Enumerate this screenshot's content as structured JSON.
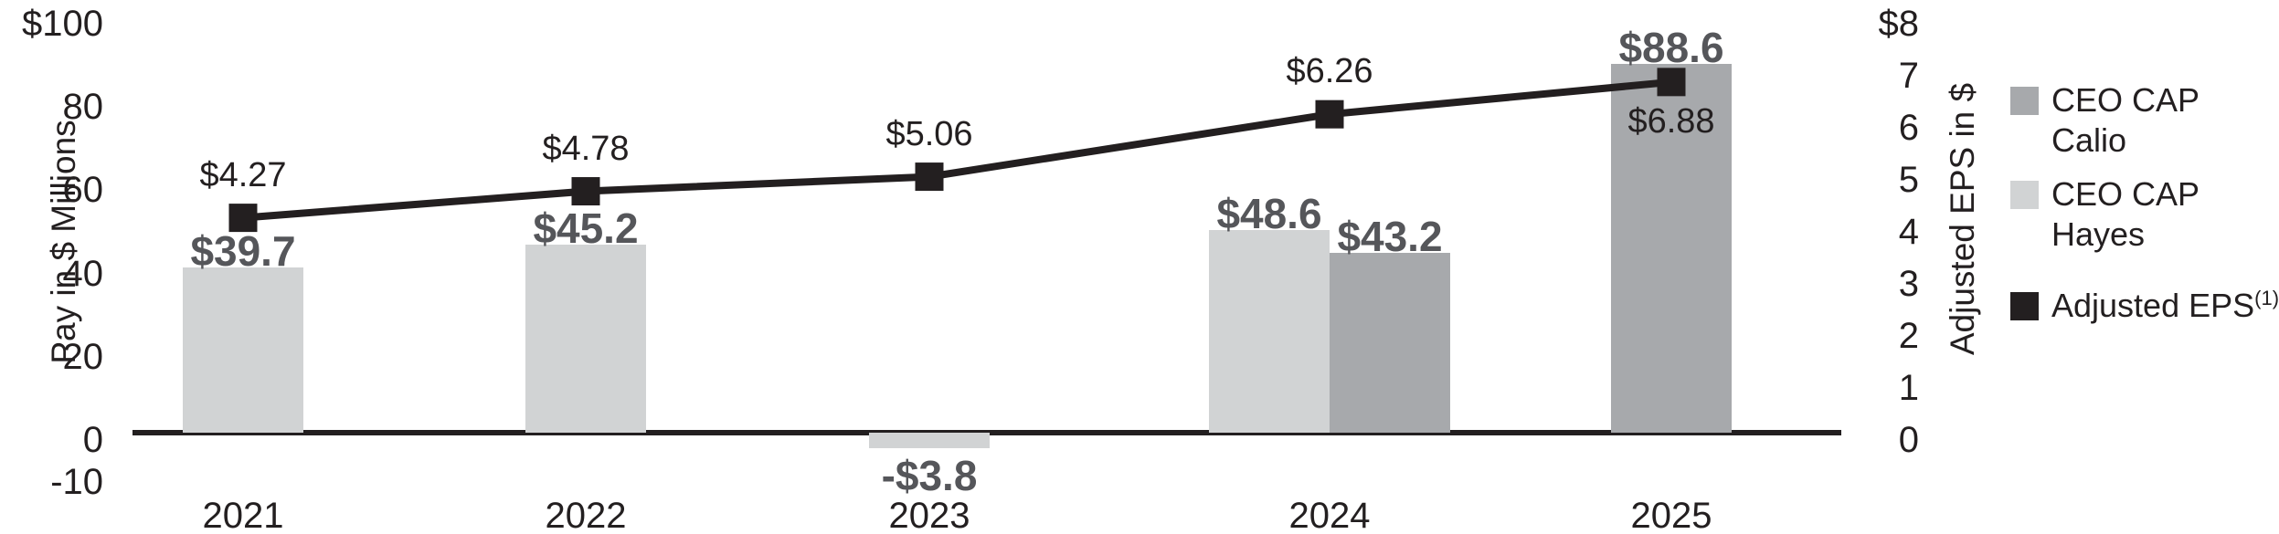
{
  "chart_data": {
    "type": "bar+line",
    "title": "",
    "left_axis": {
      "title": "Pay in $ Millions",
      "range": [
        -10,
        100
      ],
      "ticks": [
        {
          "label": "$100",
          "value": 100
        },
        {
          "label": "80",
          "value": 80
        },
        {
          "label": "60",
          "value": 60
        },
        {
          "label": "40",
          "value": 40
        },
        {
          "label": "20",
          "value": 20
        },
        {
          "label": "0",
          "value": 0
        },
        {
          "label": "-10",
          "value": -10
        }
      ]
    },
    "right_axis": {
      "title": "Adjusted EPS in $",
      "range": [
        0,
        8
      ],
      "ticks": [
        {
          "label": "$8",
          "value": 8
        },
        {
          "label": "7",
          "value": 7
        },
        {
          "label": "6",
          "value": 6
        },
        {
          "label": "5",
          "value": 5
        },
        {
          "label": "4",
          "value": 4
        },
        {
          "label": "3",
          "value": 3
        },
        {
          "label": "2",
          "value": 2
        },
        {
          "label": "1",
          "value": 1
        },
        {
          "label": "0",
          "value": 0
        }
      ]
    },
    "series_meta": {
      "hayes": {
        "name": "CEO CAP Hayes",
        "color": "#d1d3d4"
      },
      "calio": {
        "name": "CEO CAP Calio",
        "color": "#a7a9ac"
      },
      "eps": {
        "name": "Adjusted EPS",
        "color": "#231f20"
      }
    },
    "categories": [
      {
        "year": "2021",
        "bars": [
          {
            "series": "hayes",
            "value": 39.7,
            "label": "$39.7",
            "label_pos": "above"
          }
        ],
        "eps": {
          "value": 4.27,
          "label": "$4.27",
          "label_pos": "above"
        }
      },
      {
        "year": "2022",
        "bars": [
          {
            "series": "hayes",
            "value": 45.2,
            "label": "$45.2",
            "label_pos": "above"
          }
        ],
        "eps": {
          "value": 4.78,
          "label": "$4.78",
          "label_pos": "above"
        }
      },
      {
        "year": "2023",
        "bars": [
          {
            "series": "hayes",
            "value": -3.8,
            "label": "-$3.8",
            "label_pos": "below"
          }
        ],
        "eps": {
          "value": 5.06,
          "label": "$5.06",
          "label_pos": "above"
        }
      },
      {
        "year": "2024",
        "bars": [
          {
            "series": "hayes",
            "value": 48.6,
            "label": "$48.6",
            "label_pos": "above"
          },
          {
            "series": "calio",
            "value": 43.2,
            "label": "$43.2",
            "label_pos": "above"
          }
        ],
        "eps": {
          "value": 6.26,
          "label": "$6.26",
          "label_pos": "above"
        }
      },
      {
        "year": "2025",
        "bars": [
          {
            "series": "calio",
            "value": 88.6,
            "label": "$88.6",
            "label_pos": "above"
          }
        ],
        "eps": {
          "value": 6.88,
          "label": "$6.88",
          "label_pos": "below"
        }
      }
    ]
  },
  "legend": {
    "items": [
      {
        "series": "calio",
        "lines": [
          "CEO CAP",
          "Calio"
        ],
        "color": "#a7a9ac",
        "superscript": ""
      },
      {
        "series": "hayes",
        "lines": [
          "CEO CAP",
          "Hayes"
        ],
        "color": "#d1d3d4",
        "superscript": ""
      },
      {
        "series": "eps",
        "lines": [
          "Adjusted EPS"
        ],
        "color": "#231f20",
        "superscript": "(1)"
      }
    ]
  },
  "colors": {
    "text": "#231f20",
    "bar_label": "#55565a",
    "axis_line": "#231f20",
    "background": "#ffffff"
  }
}
